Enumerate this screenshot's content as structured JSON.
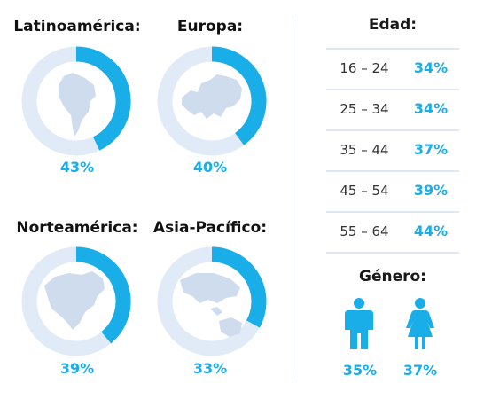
{
  "regions": [
    {
      "name": "Latinoamérica:",
      "value": 43,
      "label": "43%",
      "map_icon": "south-america-map-icon"
    },
    {
      "name": "Europa:",
      "value": 40,
      "label": "40%",
      "map_icon": "europe-map-icon"
    },
    {
      "name": "Norteamérica:",
      "value": 39,
      "label": "39%",
      "map_icon": "north-america-map-icon"
    },
    {
      "name": "Asia-Pacífico:",
      "value": 33,
      "label": "33%",
      "map_icon": "asia-pacific-map-icon"
    }
  ],
  "age": {
    "title": "Edad:",
    "rows": [
      {
        "range": "16 – 24",
        "label": "34%",
        "value": 34
      },
      {
        "range": "25 – 34",
        "label": "34%",
        "value": 34
      },
      {
        "range": "35 – 44",
        "label": "37%",
        "value": 37
      },
      {
        "range": "45 – 54",
        "label": "39%",
        "value": 39
      },
      {
        "range": "55 – 64",
        "label": "44%",
        "value": 44
      }
    ]
  },
  "gender": {
    "title": "Género:",
    "items": [
      {
        "icon": "male-icon",
        "label": "35%",
        "value": 35
      },
      {
        "icon": "female-icon",
        "label": "37%",
        "value": 37
      }
    ]
  },
  "colors": {
    "accent": "#1aaee8",
    "track": "#e1ebf8",
    "map": "#cfdcee",
    "divider": "#dfe7f2"
  },
  "chart_data": {
    "type": "pie",
    "categories": [
      "Latinoamérica",
      "Europa",
      "Norteamérica",
      "Asia-Pacífico"
    ],
    "values": [
      43,
      40,
      39,
      33
    ],
    "unit": "%",
    "age_groups": [
      "16 – 24",
      "25 – 34",
      "35 – 44",
      "45 – 54",
      "55 – 64"
    ],
    "age_values": [
      34,
      34,
      37,
      39,
      44
    ],
    "gender_values": [
      35,
      37
    ]
  }
}
